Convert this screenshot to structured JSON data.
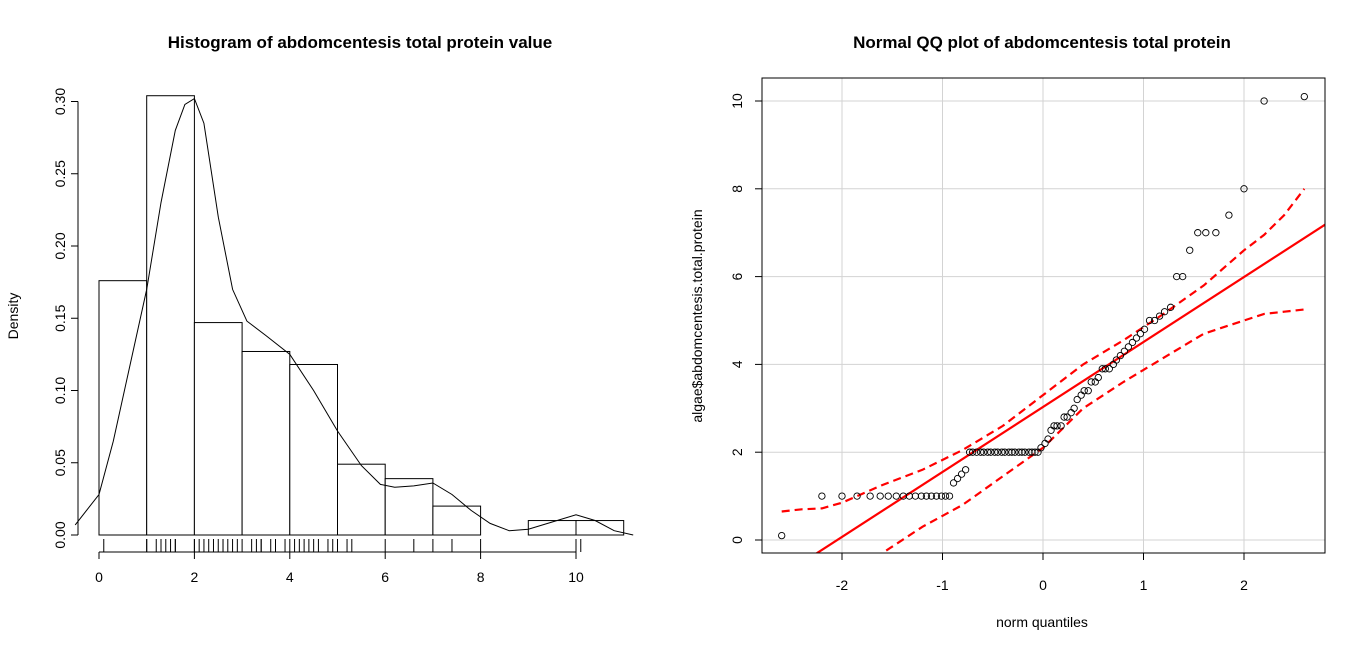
{
  "chart_data": [
    {
      "type": "bar",
      "subtype": "histogram",
      "title": "Histogram of abdomcentesis total protein value",
      "xlabel": "",
      "ylabel": "Density",
      "xlim": [
        0,
        11.3
      ],
      "ylim": [
        0,
        0.31
      ],
      "x_ticks": [
        0,
        2,
        4,
        6,
        8,
        10
      ],
      "y_ticks": [
        "0.00",
        "0.05",
        "0.10",
        "0.15",
        "0.20",
        "0.25",
        "0.30"
      ],
      "bins": [
        {
          "from": 0,
          "to": 1,
          "density": 0.176
        },
        {
          "from": 1,
          "to": 2,
          "density": 0.304
        },
        {
          "from": 2,
          "to": 3,
          "density": 0.147
        },
        {
          "from": 3,
          "to": 4,
          "density": 0.127
        },
        {
          "from": 4,
          "to": 5,
          "density": 0.118
        },
        {
          "from": 5,
          "to": 6,
          "density": 0.049
        },
        {
          "from": 6,
          "to": 7,
          "density": 0.039
        },
        {
          "from": 7,
          "to": 8,
          "density": 0.02
        },
        {
          "from": 8,
          "to": 9,
          "density": 0.0
        },
        {
          "from": 9,
          "to": 10,
          "density": 0.01
        },
        {
          "from": 10,
          "to": 11,
          "density": 0.01
        }
      ],
      "density_curve": {
        "x": [
          -0.5,
          0,
          0.3,
          0.6,
          1.0,
          1.3,
          1.6,
          1.8,
          2.0,
          2.2,
          2.5,
          2.8,
          3.1,
          3.5,
          4.0,
          4.5,
          5.0,
          5.5,
          5.9,
          6.2,
          6.6,
          7.0,
          7.4,
          7.8,
          8.2,
          8.6,
          9.0,
          9.5,
          10.0,
          10.4,
          10.8,
          11.2
        ],
        "y": [
          0.007,
          0.028,
          0.065,
          0.11,
          0.17,
          0.23,
          0.28,
          0.298,
          0.302,
          0.285,
          0.22,
          0.17,
          0.148,
          0.138,
          0.125,
          0.1,
          0.072,
          0.048,
          0.035,
          0.033,
          0.034,
          0.036,
          0.028,
          0.017,
          0.008,
          0.003,
          0.004,
          0.009,
          0.014,
          0.01,
          0.003,
          0.0
        ]
      },
      "rug": [
        0.1,
        1.0,
        1.0,
        1.2,
        1.3,
        1.4,
        1.5,
        1.6,
        1.6,
        2.0,
        2.0,
        2.1,
        2.2,
        2.3,
        2.4,
        2.5,
        2.6,
        2.6,
        2.7,
        2.8,
        2.9,
        3.0,
        3.2,
        3.3,
        3.4,
        3.4,
        3.6,
        3.7,
        3.9,
        4.0,
        4.1,
        4.2,
        4.3,
        4.4,
        4.5,
        4.6,
        4.8,
        4.9,
        5.0,
        5.2,
        5.3,
        6.0,
        6.6,
        7.0,
        7.4,
        8.0,
        10.0,
        10.1
      ]
    },
    {
      "type": "scatter",
      "subtype": "qq",
      "title": "Normal QQ plot of abdomcentesis total protein",
      "xlabel": "norm quantiles",
      "ylabel": "algae$abdomcentesis.total.protein",
      "xlim": [
        -2.8,
        2.8
      ],
      "ylim": [
        -0.3,
        10.5
      ],
      "x_ticks": [
        -2,
        -1,
        0,
        1,
        2
      ],
      "y_ticks": [
        0,
        2,
        4,
        6,
        8,
        10
      ],
      "grid": true,
      "points": [
        [
          -2.6,
          0.1
        ],
        [
          -2.2,
          1.0
        ],
        [
          -2.0,
          1.0
        ],
        [
          -1.85,
          1.0
        ],
        [
          -1.72,
          1.0
        ],
        [
          -1.62,
          1.0
        ],
        [
          -1.54,
          1.0
        ],
        [
          -1.46,
          1.0
        ],
        [
          -1.39,
          1.0
        ],
        [
          -1.33,
          1.0
        ],
        [
          -1.27,
          1.0
        ],
        [
          -1.21,
          1.0
        ],
        [
          -1.16,
          1.0
        ],
        [
          -1.11,
          1.0
        ],
        [
          -1.06,
          1.0
        ],
        [
          -1.01,
          1.0
        ],
        [
          -0.97,
          1.0
        ],
        [
          -0.93,
          1.0
        ],
        [
          -0.89,
          1.3
        ],
        [
          -0.85,
          1.4
        ],
        [
          -0.81,
          1.5
        ],
        [
          -0.77,
          1.6
        ],
        [
          -0.73,
          2.0
        ],
        [
          -0.7,
          2.0
        ],
        [
          -0.66,
          2.0
        ],
        [
          -0.62,
          2.0
        ],
        [
          -0.59,
          2.0
        ],
        [
          -0.55,
          2.0
        ],
        [
          -0.52,
          2.0
        ],
        [
          -0.48,
          2.0
        ],
        [
          -0.45,
          2.0
        ],
        [
          -0.41,
          2.0
        ],
        [
          -0.38,
          2.0
        ],
        [
          -0.34,
          2.0
        ],
        [
          -0.31,
          2.0
        ],
        [
          -0.28,
          2.0
        ],
        [
          -0.24,
          2.0
        ],
        [
          -0.21,
          2.0
        ],
        [
          -0.18,
          2.0
        ],
        [
          -0.14,
          2.0
        ],
        [
          -0.11,
          2.0
        ],
        [
          -0.08,
          2.0
        ],
        [
          -0.05,
          2.0
        ],
        [
          -0.02,
          2.1
        ],
        [
          0.02,
          2.2
        ],
        [
          0.05,
          2.3
        ],
        [
          0.08,
          2.5
        ],
        [
          0.11,
          2.6
        ],
        [
          0.14,
          2.6
        ],
        [
          0.18,
          2.6
        ],
        [
          0.21,
          2.8
        ],
        [
          0.24,
          2.8
        ],
        [
          0.28,
          2.9
        ],
        [
          0.31,
          3.0
        ],
        [
          0.34,
          3.2
        ],
        [
          0.38,
          3.3
        ],
        [
          0.41,
          3.4
        ],
        [
          0.45,
          3.4
        ],
        [
          0.48,
          3.6
        ],
        [
          0.52,
          3.6
        ],
        [
          0.55,
          3.7
        ],
        [
          0.59,
          3.9
        ],
        [
          0.62,
          3.9
        ],
        [
          0.66,
          3.9
        ],
        [
          0.7,
          4.0
        ],
        [
          0.73,
          4.1
        ],
        [
          0.77,
          4.2
        ],
        [
          0.81,
          4.3
        ],
        [
          0.85,
          4.4
        ],
        [
          0.89,
          4.5
        ],
        [
          0.93,
          4.6
        ],
        [
          0.97,
          4.7
        ],
        [
          1.01,
          4.8
        ],
        [
          1.06,
          5.0
        ],
        [
          1.11,
          5.0
        ],
        [
          1.16,
          5.1
        ],
        [
          1.21,
          5.2
        ],
        [
          1.27,
          5.3
        ],
        [
          1.33,
          6.0
        ],
        [
          1.39,
          6.0
        ],
        [
          1.46,
          6.6
        ],
        [
          1.54,
          7.0
        ],
        [
          1.62,
          7.0
        ],
        [
          1.72,
          7.0
        ],
        [
          1.85,
          7.4
        ],
        [
          2.0,
          8.0
        ],
        [
          2.2,
          10.0
        ],
        [
          2.6,
          10.1
        ]
      ],
      "reference_line": {
        "intercept": 3.03,
        "slope": 1.48,
        "color": "#ff0000"
      },
      "confidence_band": {
        "color": "#ff0000",
        "x": [
          -2.6,
          -2.4,
          -2.2,
          -2.0,
          -1.6,
          -1.2,
          -0.8,
          -0.4,
          0.0,
          0.4,
          0.8,
          1.2,
          1.6,
          2.0,
          2.2,
          2.4,
          2.6
        ],
        "upper": [
          0.65,
          0.7,
          0.72,
          0.85,
          1.25,
          1.6,
          2.05,
          2.6,
          3.3,
          4.0,
          4.55,
          5.15,
          5.8,
          6.6,
          6.95,
          7.4,
          8.0
        ],
        "lower": [
          -2.0,
          -1.65,
          -1.3,
          -0.95,
          -0.3,
          0.3,
          0.8,
          1.45,
          2.1,
          3.0,
          3.6,
          4.15,
          4.7,
          5.0,
          5.15,
          5.2,
          5.25
        ]
      }
    }
  ]
}
